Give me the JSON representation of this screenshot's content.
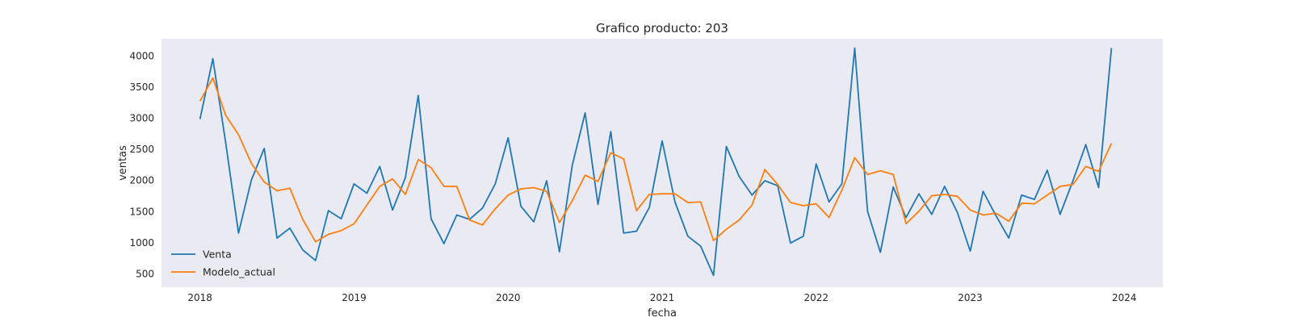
{
  "chart_data": {
    "type": "line",
    "title": "Grafico producto: 203",
    "xlabel": "fecha",
    "ylabel": "ventas",
    "x_start": "2018-01",
    "x_ticks": [
      "2018",
      "2019",
      "2020",
      "2021",
      "2022",
      "2023",
      "2024"
    ],
    "y_ticks": [
      500,
      1000,
      1500,
      2000,
      2500,
      3000,
      3500,
      4000
    ],
    "ylim": [
      280,
      4270
    ],
    "xlim": [
      "2017-10",
      "2024-04"
    ],
    "grid": false,
    "legend_position": "bottom-left",
    "background_color": "#eaeaf2",
    "series": [
      {
        "name": "Venta",
        "color": "#1f77b4",
        "values": [
          2980,
          3950,
          2600,
          1150,
          2000,
          2510,
          1070,
          1230,
          880,
          710,
          1510,
          1380,
          1940,
          1790,
          2220,
          1520,
          2040,
          3360,
          1380,
          980,
          1440,
          1370,
          1550,
          1940,
          2680,
          1580,
          1330,
          1990,
          850,
          2240,
          3080,
          1610,
          2780,
          1150,
          1180,
          1560,
          2630,
          1650,
          1100,
          940,
          470,
          2540,
          2060,
          1760,
          1990,
          1910,
          990,
          1100,
          2260,
          1650,
          1940,
          4120,
          1500,
          840,
          1890,
          1400,
          1780,
          1450,
          1900,
          1480,
          860,
          1820,
          1430,
          1070,
          1760,
          1690,
          2160,
          1450,
          1990,
          2570,
          1880,
          4120
        ]
      },
      {
        "name": "Modelo_actual",
        "color": "#ff7f0e",
        "values": [
          3270,
          3640,
          3040,
          2730,
          2270,
          1970,
          1830,
          1870,
          1370,
          1010,
          1130,
          1190,
          1300,
          1600,
          1900,
          2020,
          1770,
          2330,
          2200,
          1900,
          1900,
          1360,
          1280,
          1540,
          1760,
          1860,
          1880,
          1820,
          1320,
          1670,
          2080,
          1980,
          2440,
          2340,
          1510,
          1770,
          1780,
          1780,
          1640,
          1650,
          1030,
          1210,
          1360,
          1600,
          2170,
          1930,
          1640,
          1590,
          1620,
          1400,
          1840,
          2360,
          2090,
          2150,
          2090,
          1300,
          1500,
          1750,
          1770,
          1740,
          1520,
          1440,
          1470,
          1340,
          1630,
          1620,
          1760,
          1900,
          1930,
          2220,
          2140,
          2590
        ]
      }
    ]
  }
}
